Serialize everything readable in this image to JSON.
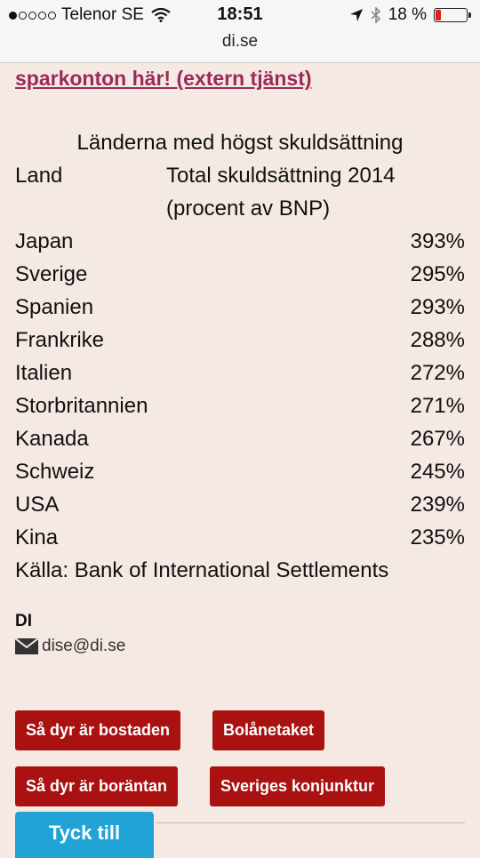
{
  "status": {
    "carrier": "Telenor SE",
    "time": "18:51",
    "battery": "18 %",
    "battery_level": 0.18,
    "url": "di.se"
  },
  "ad": {
    "link": "sparkonton här! (extern tjänst)"
  },
  "table": {
    "title": "Länderna med högst skuldsättning",
    "col1": "Land",
    "col2_line1": "Total skuldsättning 2014",
    "col2_line2": "(procent av BNP)",
    "rows": [
      {
        "country": "Japan",
        "value": "393%"
      },
      {
        "country": "Sverige",
        "value": "295%"
      },
      {
        "country": "Spanien",
        "value": "293%"
      },
      {
        "country": "Frankrike",
        "value": "288%"
      },
      {
        "country": "Italien",
        "value": "272%"
      },
      {
        "country": "Storbritannien",
        "value": "271%"
      },
      {
        "country": "Kanada",
        "value": "267%"
      },
      {
        "country": "Schweiz",
        "value": "245%"
      },
      {
        "country": "USA",
        "value": "239%"
      },
      {
        "country": "Kina",
        "value": "235%"
      }
    ],
    "source": "Källa: Bank of International Settlements"
  },
  "author": {
    "name": "DI",
    "email": "dise@di.se"
  },
  "buttons": {
    "b1": "Så dyr är bostaden",
    "b2": "Bolånetaket",
    "b3": "Så dyr är boräntan",
    "b4": "Sveriges konjunktur"
  },
  "feedback": {
    "label": "Tyck till"
  },
  "colors": {
    "accent_red": "#aa1212",
    "link": "#9b2a56",
    "feedback_blue": "#21a3d6",
    "background": "#f4e9e3"
  }
}
